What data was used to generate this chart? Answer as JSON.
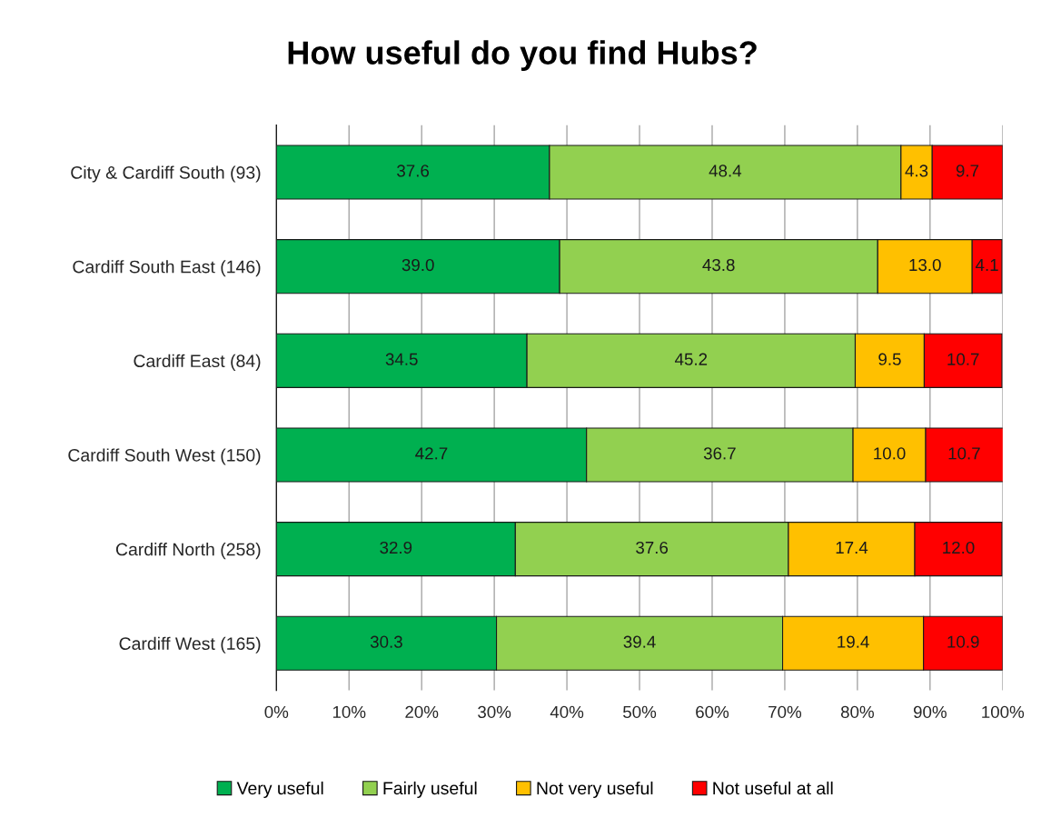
{
  "chart_data": {
    "type": "bar",
    "orientation": "horizontal",
    "stacked": true,
    "title": "How useful do you find Hubs?",
    "categories": [
      "City & Cardiff South (93)",
      "Cardiff South East (146)",
      "Cardiff East (84)",
      "Cardiff South West (150)",
      "Cardiff North (258)",
      "Cardiff West (165)"
    ],
    "series": [
      {
        "name": "Very useful",
        "color": "#00b050",
        "values": [
          37.6,
          39.0,
          34.5,
          42.7,
          32.9,
          30.3
        ],
        "value_labels": [
          "37.6",
          "39.0",
          "34.5",
          "42.7",
          "32.9",
          "30.3"
        ]
      },
      {
        "name": "Fairly useful",
        "color": "#92d050",
        "values": [
          48.4,
          43.8,
          45.2,
          36.7,
          37.6,
          39.4
        ],
        "value_labels": [
          "48.4",
          "43.8",
          "45.2",
          "36.7",
          "37.6",
          "39.4"
        ]
      },
      {
        "name": "Not very useful",
        "color": "#ffc000",
        "values": [
          4.3,
          13.0,
          9.5,
          10.0,
          17.4,
          19.4
        ],
        "value_labels": [
          "4.3",
          "13.0",
          "9.5",
          "10.0",
          "17.4",
          "19.4"
        ]
      },
      {
        "name": "Not useful at all",
        "color": "#ff0000",
        "values": [
          9.7,
          4.1,
          10.7,
          10.7,
          12.0,
          10.9
        ],
        "value_labels": [
          "9.7",
          "4.1",
          "10.7",
          "10.7",
          "12.0",
          "10.9"
        ]
      }
    ],
    "xlim": [
      0,
      100
    ],
    "xticks": [
      {
        "value": 0,
        "label": "0%"
      },
      {
        "value": 10,
        "label": "10%"
      },
      {
        "value": 20,
        "label": "20%"
      },
      {
        "value": 30,
        "label": "30%"
      },
      {
        "value": 40,
        "label": "40%"
      },
      {
        "value": 50,
        "label": "50%"
      },
      {
        "value": 60,
        "label": "60%"
      },
      {
        "value": 70,
        "label": "70%"
      },
      {
        "value": 80,
        "label": "80%"
      },
      {
        "value": 90,
        "label": "90%"
      },
      {
        "value": 100,
        "label": "100%"
      }
    ],
    "grid": "x",
    "legend": "bottom"
  }
}
